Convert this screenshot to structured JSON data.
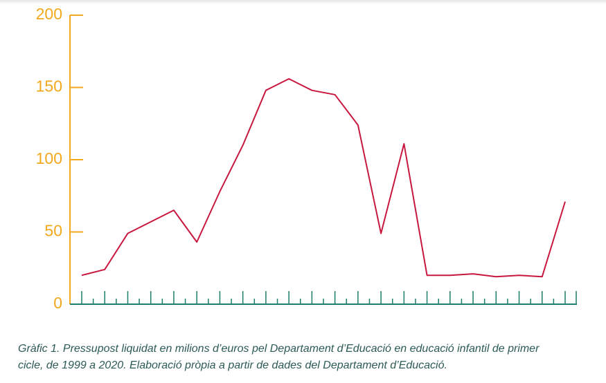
{
  "chart_data": {
    "type": "line",
    "categories": [
      null,
      null,
      null,
      null,
      null,
      null,
      null,
      null,
      null,
      null,
      null,
      null,
      null,
      null,
      null,
      null,
      null,
      null,
      null,
      null,
      null,
      null
    ],
    "series": [
      {
        "color": "#c8173f",
        "values": [
          20,
          24,
          49,
          57,
          65,
          43,
          78,
          110,
          148,
          156,
          148,
          145,
          124,
          49,
          111,
          20,
          20,
          21,
          19,
          20,
          19,
          71
        ]
      }
    ],
    "ylim": [
      0,
      200
    ],
    "yticks": [
      0,
      50,
      100,
      150,
      200
    ],
    "y_axis_color": "#f2a81d",
    "x_axis_color": "#1b7d6a",
    "caption": [
      "Gràfic 1. Pressupost liquidat en milions d’euros pel Departament d’Educació en educació infantil de primer",
      "cicle, de 1999 a 2020. Elaboració pròpia a partir de dades del Departament d’Educació."
    ]
  }
}
